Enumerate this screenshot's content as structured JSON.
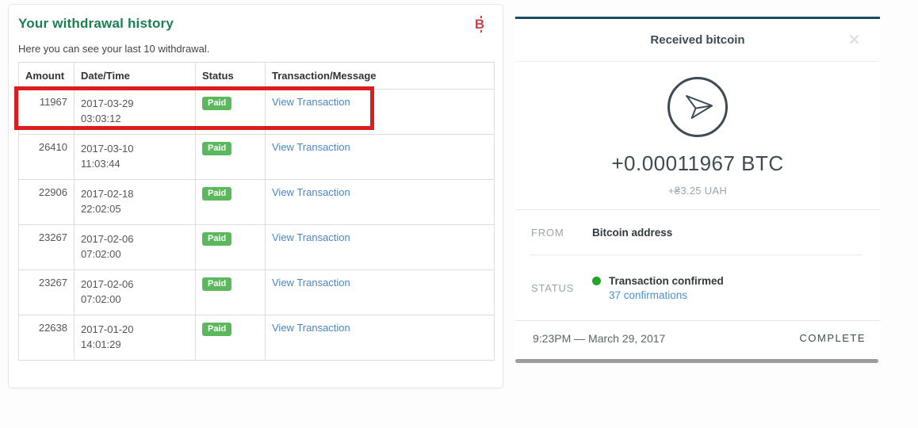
{
  "withdrawal_panel": {
    "title": "Your withdrawal history",
    "subtitle": "Here you can see your last 10 withdrawal.",
    "bitcoin_icon": "B",
    "table": {
      "headers": [
        "Amount",
        "Date/Time",
        "Status",
        "Transaction/Message"
      ],
      "rows": [
        {
          "amount": "11967",
          "date": "2017-03-29",
          "time": "03:03:12",
          "status": "Paid",
          "link": "View Transaction",
          "highlighted": true
        },
        {
          "amount": "26410",
          "date": "2017-03-10",
          "time": "11:03:44",
          "status": "Paid",
          "link": "View Transaction",
          "highlighted": false
        },
        {
          "amount": "22906",
          "date": "2017-02-18",
          "time": "22:02:05",
          "status": "Paid",
          "link": "View Transaction",
          "highlighted": false
        },
        {
          "amount": "23267",
          "date": "2017-02-06",
          "time": "07:02:00",
          "status": "Paid",
          "link": "View Transaction",
          "highlighted": false
        },
        {
          "amount": "23267",
          "date": "2017-02-06",
          "time": "07:02:00",
          "status": "Paid",
          "link": "View Transaction",
          "highlighted": false
        },
        {
          "amount": "22638",
          "date": "2017-01-20",
          "time": "14:01:29",
          "status": "Paid",
          "link": "View Transaction",
          "highlighted": false
        }
      ]
    }
  },
  "receipt_modal": {
    "title": "Received bitcoin",
    "close_icon": "✕",
    "send_icon": "paper-plane-icon",
    "amount_btc": "+0.00011967 BTC",
    "amount_fiat": "+₴3.25 UAH",
    "from_label": "FROM",
    "from_value": "Bitcoin address",
    "status_label": "STATUS",
    "status_value": "Transaction confirmed",
    "confirmations_link": "37 confirmations",
    "timestamp": "9:23PM — March 29, 2017",
    "state_label": "COMPLETE"
  },
  "colors": {
    "title_green": "#1a8054",
    "badge_green": "#5cb85c",
    "status_dot_green": "#23a42c",
    "link_blue": "#4a86c8",
    "confirmations_blue": "#4a90d9",
    "highlight_red": "#dc1d1d",
    "bitcoin_red": "#c9444e",
    "modal_topline_teal": "#1c4b63",
    "scrollbar_gray": "#9d9d9d"
  }
}
